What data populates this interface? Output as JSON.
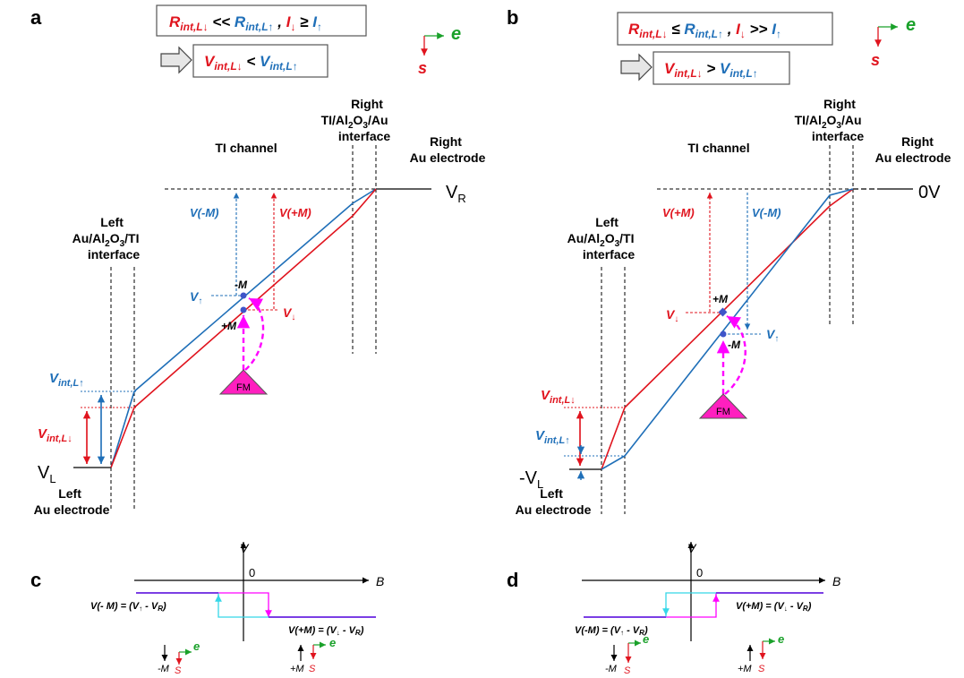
{
  "colors": {
    "red": "#e0141e",
    "blue": "#1f6fb8",
    "green": "#1aa12a",
    "magenta": "#ff00ff",
    "cyan": "#35d7e8",
    "purple": "#7b3fe4",
    "black": "#000000"
  },
  "icons": {
    "arrow": "hollow-right-arrow",
    "axes": "spin-electron-axes"
  },
  "panel_a": {
    "letter": "a",
    "cond1": {
      "r_down": "R",
      "r_down_sub": "int,L↓",
      "op1": " << ",
      "r_up": "R",
      "r_up_sub": "int,L↑",
      "comma": " , ",
      "i_down": "I",
      "i_down_sub": "↓",
      "op2": " ≥ ",
      "i_up": "I",
      "i_up_sub": "↑"
    },
    "cond2": {
      "v_down": "V",
      "v_down_sub": "int,L↓",
      "op": " < ",
      "v_up": "V",
      "v_up_sub": "int,L↑"
    },
    "axis_e": "e",
    "axis_s": "s",
    "right_interface": [
      "Right",
      "TI/Al",
      "2",
      "O",
      "3",
      "/Au",
      "interface"
    ],
    "right_electrode": [
      "Right",
      "Au electrode"
    ],
    "ti_channel": "TI channel",
    "left_interface": [
      "Left",
      "Au/Al",
      "2",
      "O",
      "3",
      "/TI",
      "interface"
    ],
    "left_electrode": [
      "Left",
      "Au electrode"
    ],
    "vr": "V",
    "vr_sub": "R",
    "vl": "V",
    "vl_sub": "L",
    "v_minus_m": "V(-M)",
    "v_plus_m": "V(+M)",
    "minus_m": "-M",
    "plus_m": "+M",
    "v_up": "V",
    "v_up_sub": "↑",
    "v_down": "V",
    "v_down_sub": "↓",
    "vint_up": "V",
    "vint_up_sub": "int,L↑",
    "vint_down": "V",
    "vint_down_sub": "int,L↓",
    "fm": "FM"
  },
  "panel_b": {
    "letter": "b",
    "cond1": {
      "r_down": "R",
      "r_down_sub": "int,L↓",
      "op1": " ≤ ",
      "r_up": "R",
      "r_up_sub": "int,L↑",
      "comma": " , ",
      "i_down": "I",
      "i_down_sub": "↓",
      "op2": " >> ",
      "i_up": "I",
      "i_up_sub": "↑"
    },
    "cond2": {
      "v_down": "V",
      "v_down_sub": "int,L↓",
      "op": " > ",
      "v_up": "V",
      "v_up_sub": "int,L↑"
    },
    "axis_e": "e",
    "axis_s": "s",
    "right_interface": [
      "Right",
      "TI/Al",
      "2",
      "O",
      "3",
      "/Au",
      "interface"
    ],
    "right_electrode": [
      "Right",
      "Au electrode"
    ],
    "ti_channel": "TI channel",
    "left_interface": [
      "Left",
      "Au/Al",
      "2",
      "O",
      "3",
      "/TI",
      "interface"
    ],
    "left_electrode": [
      "Left",
      "Au electrode"
    ],
    "zero_v": "0V",
    "vl": "-V",
    "vl_sub": "L",
    "v_plus_m": "V(+M)",
    "v_minus_m": "V(-M)",
    "plus_m": "+M",
    "minus_m": "-M",
    "v_down": "V",
    "v_down_sub": "↓",
    "v_up": "V",
    "v_up_sub": "↑",
    "vint_down": "V",
    "vint_down_sub": "int,L↓",
    "vint_up": "V",
    "vint_up_sub": "int,L↑",
    "fm": "FM"
  },
  "panel_c": {
    "letter": "c",
    "axis_v": "V",
    "axis_b": "B",
    "zero": "0",
    "label_left": "V(- M) = (V",
    "label_left_sub1": "↑",
    "label_left_mid": " - V",
    "label_left_sub2": "R",
    "label_left_end": ")",
    "label_right": "V(+M) = (V",
    "label_right_sub1": "↓",
    "label_right_mid": " - V",
    "label_right_sub2": "R",
    "label_right_end": ")",
    "state1": "-M",
    "state2": "+M",
    "e": "e",
    "s": "S"
  },
  "panel_d": {
    "letter": "d",
    "axis_v": "V",
    "axis_b": "B",
    "zero": "0",
    "label_left": "V(-M) = (V",
    "label_left_sub1": "↑",
    "label_left_mid": " - V",
    "label_left_sub2": "R",
    "label_left_end": ")",
    "label_right": "V(+M) = (V",
    "label_right_sub1": "↓",
    "label_right_mid": " - V",
    "label_right_sub2": "R",
    "label_right_end": ")",
    "state1": "-M",
    "state2": "+M",
    "e": "e",
    "s": "S"
  }
}
